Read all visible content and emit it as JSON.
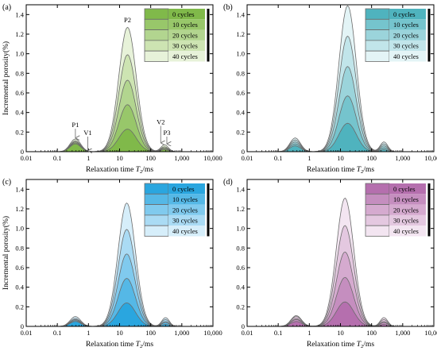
{
  "figure": {
    "ylabel": "Incremental porosity(%)",
    "xlabel_prefix": "Relaxation time ",
    "xlabel_var": "T",
    "xlabel_sub": "2",
    "xlabel_suffix": "/ms"
  },
  "chart_data": [
    {
      "type": "area",
      "panel_label": "(a)",
      "xscale": "log",
      "xlim": [
        0.01,
        10000
      ],
      "ylim": [
        0,
        1.5
      ],
      "xticks": [
        "0.01",
        "0.1",
        "1",
        "10",
        "100",
        "1,000",
        "10,000"
      ],
      "yticks": [
        "0",
        "0.2",
        "0.4",
        "0.6",
        "0.8",
        "1.0",
        "1.2",
        "1.4"
      ],
      "xlabel": "Relaxation time T2/ms",
      "ylabel": "Incremental porosity(%)",
      "legend_position": "top-right",
      "palette": [
        "#80b94a",
        "#98c76a",
        "#b2d58f",
        "#cde4b2",
        "#e7f2d9"
      ],
      "peaks": {
        "x": [
          0.38,
          18,
          280
        ],
        "heights": [
          [
            0.08,
            0.23,
            0.02
          ],
          [
            0.09,
            0.48,
            0.03
          ],
          [
            0.1,
            0.73,
            0.04
          ],
          [
            0.11,
            0.99,
            0.05
          ],
          [
            0.13,
            1.27,
            0.07
          ]
        ]
      },
      "series": [
        {
          "name": "0 cycles",
          "peak_values": [
            0.08,
            0.23,
            0.02
          ]
        },
        {
          "name": "10 cycles",
          "peak_values": [
            0.09,
            0.48,
            0.03
          ]
        },
        {
          "name": "20 cycles",
          "peak_values": [
            0.1,
            0.73,
            0.04
          ]
        },
        {
          "name": "30 cycles",
          "peak_values": [
            0.11,
            0.99,
            0.05
          ]
        },
        {
          "name": "40 cycles",
          "peak_values": [
            0.13,
            1.27,
            0.07
          ]
        }
      ],
      "annotations": [
        {
          "text": "P1",
          "x": 0.38,
          "y": 0.25,
          "arrow_to": 0.14
        },
        {
          "text": "V1",
          "x": 0.95,
          "y": 0.17,
          "arrow_to": 0.01
        },
        {
          "text": "P2",
          "x": 18,
          "y": 1.32
        },
        {
          "text": "V2",
          "x": 210,
          "y": 0.28,
          "arrow_to": 0.09
        },
        {
          "text": "P3",
          "x": 330,
          "y": 0.17,
          "arrow_to": 0.08
        }
      ]
    },
    {
      "type": "area",
      "panel_label": "(b)",
      "xscale": "log",
      "xlim": [
        0.01,
        10000
      ],
      "ylim": [
        0,
        1.5
      ],
      "xticks": [
        "0.01",
        "0.1",
        "1",
        "10",
        "100",
        "1,000",
        "10,000"
      ],
      "yticks": [
        "0",
        "0.2",
        "0.4",
        "0.6",
        "0.8",
        "1.0",
        "1.2",
        "1.4"
      ],
      "xlabel": "Relaxation time T2/ms",
      "legend_position": "top-right",
      "palette": [
        "#4fb3be",
        "#75c4cd",
        "#9bd4db",
        "#c1e5ea",
        "#e3f4f6"
      ],
      "peaks": {
        "x": [
          0.35,
          17,
          250
        ],
        "heights": [
          [
            0.06,
            0.29,
            0.02
          ],
          [
            0.08,
            0.57,
            0.04
          ],
          [
            0.1,
            0.87,
            0.06
          ],
          [
            0.12,
            1.18,
            0.08
          ],
          [
            0.14,
            1.49,
            0.1
          ]
        ]
      },
      "series": [
        {
          "name": "0 cycles",
          "peak_values": [
            0.06,
            0.29,
            0.02
          ]
        },
        {
          "name": "10 cycles",
          "peak_values": [
            0.08,
            0.57,
            0.04
          ]
        },
        {
          "name": "20 cycles",
          "peak_values": [
            0.1,
            0.87,
            0.06
          ]
        },
        {
          "name": "30 cycles",
          "peak_values": [
            0.12,
            1.18,
            0.08
          ]
        },
        {
          "name": "40 cycles",
          "peak_values": [
            0.14,
            1.49,
            0.1
          ]
        }
      ]
    },
    {
      "type": "area",
      "panel_label": "(c)",
      "xscale": "log",
      "xlim": [
        0.01,
        10000
      ],
      "ylim": [
        0,
        1.5
      ],
      "xticks": [
        "0.01",
        "0.1",
        "1",
        "10",
        "100",
        "1,000",
        "10,000"
      ],
      "yticks": [
        "0",
        "0.2",
        "0.4",
        "0.6",
        "0.8",
        "1.0",
        "1.2",
        "1.4"
      ],
      "xlabel": "Relaxation time T2/ms",
      "ylabel": "Incremental porosity(%)",
      "legend_position": "top-right",
      "palette": [
        "#2aa6df",
        "#55b8e6",
        "#80caee",
        "#aadbf4",
        "#d6eefa"
      ],
      "peaks": {
        "x": [
          0.38,
          17,
          300
        ],
        "heights": [
          [
            0.05,
            0.24,
            0.02
          ],
          [
            0.06,
            0.49,
            0.04
          ],
          [
            0.07,
            0.74,
            0.05
          ],
          [
            0.08,
            0.99,
            0.07
          ],
          [
            0.1,
            1.26,
            0.09
          ]
        ]
      },
      "series": [
        {
          "name": "0 cycles",
          "peak_values": [
            0.05,
            0.24,
            0.02
          ]
        },
        {
          "name": "10 cycles",
          "peak_values": [
            0.06,
            0.49,
            0.04
          ]
        },
        {
          "name": "20 cycles",
          "peak_values": [
            0.07,
            0.74,
            0.05
          ]
        },
        {
          "name": "30 cycles",
          "peak_values": [
            0.08,
            0.99,
            0.07
          ]
        },
        {
          "name": "40 cycles",
          "peak_values": [
            0.1,
            1.26,
            0.09
          ]
        }
      ]
    },
    {
      "type": "area",
      "panel_label": "(d)",
      "xscale": "log",
      "xlim": [
        0.01,
        10000
      ],
      "ylim": [
        0,
        1.5
      ],
      "xticks": [
        "0.01",
        "0.1",
        "1",
        "10",
        "100",
        "1,000",
        "10,000"
      ],
      "yticks": [
        "0",
        "0.2",
        "0.4",
        "0.6",
        "0.8",
        "1.0",
        "1.2",
        "1.4"
      ],
      "xlabel": "Relaxation time T2/ms",
      "legend_position": "top-right",
      "palette": [
        "#b56fae",
        "#c58ebf",
        "#d5aacf",
        "#e4c8e0",
        "#f3e5f1"
      ],
      "peaks": {
        "x": [
          0.38,
          14,
          250
        ],
        "heights": [
          [
            0.05,
            0.25,
            0.02
          ],
          [
            0.07,
            0.5,
            0.04
          ],
          [
            0.08,
            0.76,
            0.05
          ],
          [
            0.1,
            1.03,
            0.07
          ],
          [
            0.11,
            1.31,
            0.09
          ]
        ]
      },
      "series": [
        {
          "name": "0 cycles",
          "peak_values": [
            0.05,
            0.25,
            0.02
          ]
        },
        {
          "name": "10 cycles",
          "peak_values": [
            0.07,
            0.5,
            0.04
          ]
        },
        {
          "name": "20 cycles",
          "peak_values": [
            0.08,
            0.76,
            0.05
          ]
        },
        {
          "name": "30 cycles",
          "peak_values": [
            0.1,
            1.03,
            0.07
          ]
        },
        {
          "name": "40 cycles",
          "peak_values": [
            0.11,
            1.31,
            0.09
          ]
        }
      ]
    }
  ]
}
